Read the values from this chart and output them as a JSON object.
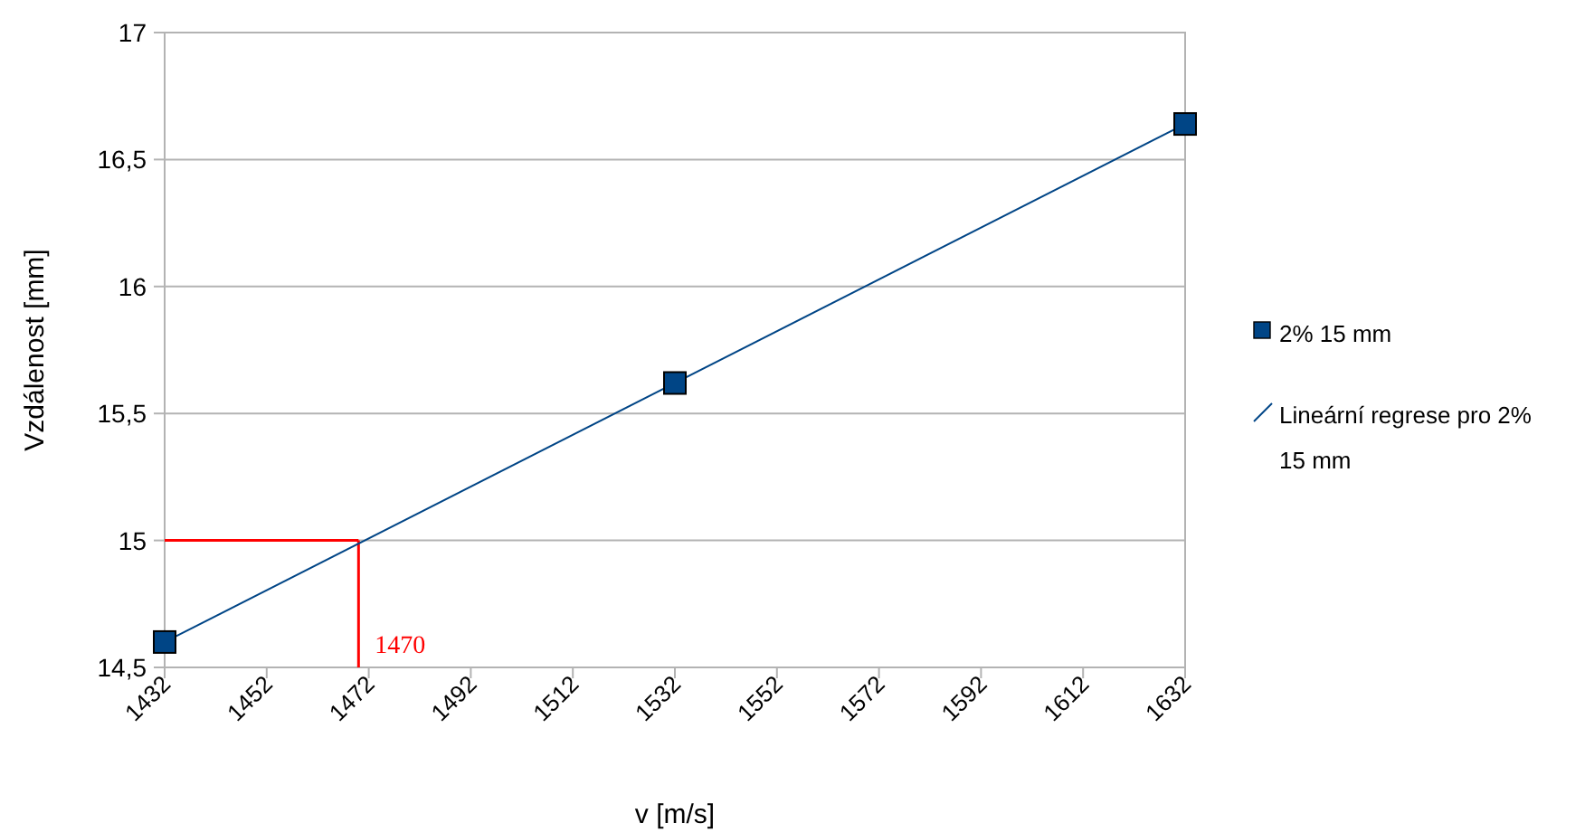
{
  "chart_data": {
    "type": "scatter",
    "xlabel": "v [m/s]",
    "ylabel": "Vzdálenost [mm]",
    "xlim": [
      1432,
      1632
    ],
    "xticks": [
      1432,
      1452,
      1472,
      1492,
      1512,
      1532,
      1552,
      1572,
      1592,
      1612,
      1632
    ],
    "ylim": [
      14.5,
      17
    ],
    "yticks": [
      {
        "value": 14.5,
        "label": "14,5"
      },
      {
        "value": 15,
        "label": "15"
      },
      {
        "value": 15.5,
        "label": "15,5"
      },
      {
        "value": 16,
        "label": "16"
      },
      {
        "value": 16.5,
        "label": "16,5"
      },
      {
        "value": 17,
        "label": "17"
      }
    ],
    "grid": "y",
    "legend": "right",
    "series": [
      {
        "name": "2% 15 mm",
        "marker": "square",
        "color": "#004586",
        "x": [
          1432,
          1532,
          1632
        ],
        "values": [
          14.6,
          15.62,
          16.64
        ]
      },
      {
        "name": "Lineární regrese pro 2% 15 mm",
        "type": "line",
        "marker": "none",
        "color": "#004586",
        "x": [
          1432,
          1632
        ],
        "values": [
          14.6,
          16.64
        ]
      }
    ],
    "ref_lines": [
      {
        "axis": "y",
        "value": 15,
        "color": "#ff0000"
      },
      {
        "axis": "x",
        "value": 1470,
        "label": "1470",
        "color": "#ff0000"
      }
    ]
  }
}
